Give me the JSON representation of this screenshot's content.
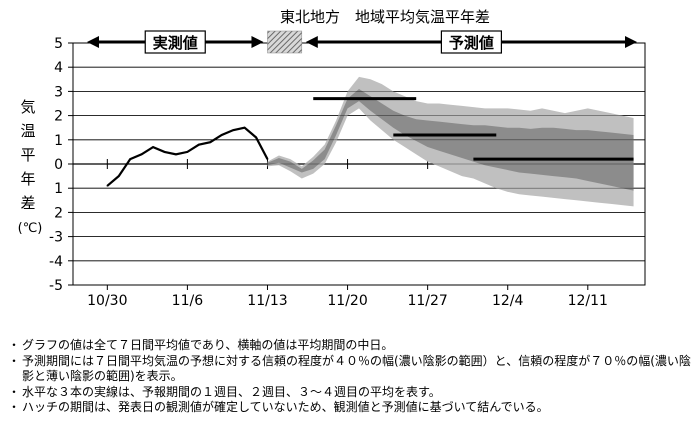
{
  "chart_data": {
    "type": "line",
    "title": "東北地方　地域平均気温平年差",
    "ylabel": [
      "気",
      "温",
      "平",
      "年",
      "差",
      "(℃)"
    ],
    "ylim": [
      -5,
      5
    ],
    "yticks": [
      "5",
      "4",
      "3",
      "2",
      "1",
      "0",
      "1",
      "2",
      "-3",
      "-4",
      "-5"
    ],
    "x_tick_labels": [
      "10/30",
      "11/6",
      "11/13",
      "11/20",
      "11/27",
      "12/4",
      "12/11"
    ],
    "period_labels": {
      "observed": "実測値",
      "forecast": "予測値"
    },
    "observed": {
      "name": "実測値",
      "x": [
        "10/30",
        "10/31",
        "11/1",
        "11/2",
        "11/3",
        "11/4",
        "11/5",
        "11/6",
        "11/7",
        "11/8",
        "11/9",
        "11/10",
        "11/11",
        "11/12",
        "11/13"
      ],
      "values": [
        -0.9,
        -0.5,
        0.2,
        0.4,
        0.7,
        0.5,
        0.4,
        0.5,
        0.8,
        0.9,
        1.2,
        1.4,
        1.5,
        1.1,
        0.2
      ]
    },
    "hatch_period": [
      "11/13",
      "11/16"
    ],
    "forecast_bands": {
      "x": [
        "11/13",
        "11/14",
        "11/15",
        "11/16",
        "11/17",
        "11/18",
        "11/19",
        "11/20",
        "11/21",
        "11/22",
        "11/23",
        "11/24",
        "11/25",
        "11/26",
        "11/27",
        "11/28",
        "11/29",
        "11/30",
        "12/1",
        "12/2",
        "12/3",
        "12/4",
        "12/5",
        "12/6",
        "12/7",
        "12/8",
        "12/9",
        "12/10",
        "12/11",
        "12/12",
        "12/13",
        "12/14",
        "12/15"
      ],
      "band70_upper": [
        0.1,
        0.35,
        0.2,
        -0.1,
        0.3,
        0.8,
        1.8,
        3.0,
        3.6,
        3.5,
        3.3,
        3.0,
        2.8,
        2.6,
        2.5,
        2.5,
        2.45,
        2.4,
        2.35,
        2.3,
        2.3,
        2.3,
        2.25,
        2.2,
        2.3,
        2.2,
        2.1,
        2.2,
        2.3,
        2.2,
        2.1,
        2.0,
        1.9
      ],
      "band40_upper": [
        0.05,
        0.25,
        0.1,
        -0.2,
        0.15,
        0.6,
        1.6,
        2.7,
        3.1,
        2.8,
        2.5,
        2.2,
        2.0,
        1.85,
        1.8,
        1.75,
        1.7,
        1.65,
        1.6,
        1.6,
        1.55,
        1.5,
        1.5,
        1.45,
        1.5,
        1.5,
        1.45,
        1.4,
        1.4,
        1.35,
        1.3,
        1.25,
        1.2
      ],
      "band40_lower": [
        -0.05,
        0.05,
        -0.15,
        -0.35,
        -0.2,
        0.2,
        1.2,
        2.3,
        2.6,
        2.2,
        1.85,
        1.5,
        1.2,
        0.95,
        0.7,
        0.55,
        0.4,
        0.25,
        0.1,
        -0.05,
        -0.15,
        -0.25,
        -0.35,
        -0.4,
        -0.45,
        -0.5,
        -0.55,
        -0.6,
        -0.7,
        -0.8,
        -0.9,
        -1.0,
        -1.1
      ],
      "band70_lower": [
        -0.1,
        -0.05,
        -0.3,
        -0.6,
        -0.4,
        0.0,
        0.9,
        2.0,
        2.3,
        1.8,
        1.4,
        1.0,
        0.7,
        0.4,
        0.1,
        -0.1,
        -0.3,
        -0.5,
        -0.6,
        -0.8,
        -1.0,
        -1.15,
        -1.25,
        -1.3,
        -1.35,
        -1.4,
        -1.45,
        -1.5,
        -1.55,
        -1.6,
        -1.65,
        -1.7,
        -1.75
      ]
    },
    "weekly_means": [
      {
        "x_start": "11/17",
        "x_end": "11/26",
        "value": 2.7
      },
      {
        "x_start": "11/24",
        "x_end": "12/3",
        "value": 1.2
      },
      {
        "x_start": "12/1",
        "x_end": "12/15",
        "value": 0.2
      }
    ],
    "colors": {
      "band70": "#c0c0c0",
      "band40": "#8c8c8c",
      "line": "#000000",
      "hatch": "#808080"
    }
  },
  "notes": [
    "グラフの値は全て７日間平均値であり、横軸の値は平均期間の中日。",
    "予測期間には７日間平均気温の予想に対する信頼の程度が４０％の幅(濃い陰影の範囲）と、信頼の程度が７０％の幅(濃い陰影と薄い陰影の範囲)を表示。",
    "水平な３本の実線は、予報期間の１週目、２週目、３～４週目の平均を表す。",
    "ハッチの期間は、発表日の観測値が確定していないため、観測値と予測値に基づいて結んでいる。"
  ],
  "note_bullet": "・"
}
